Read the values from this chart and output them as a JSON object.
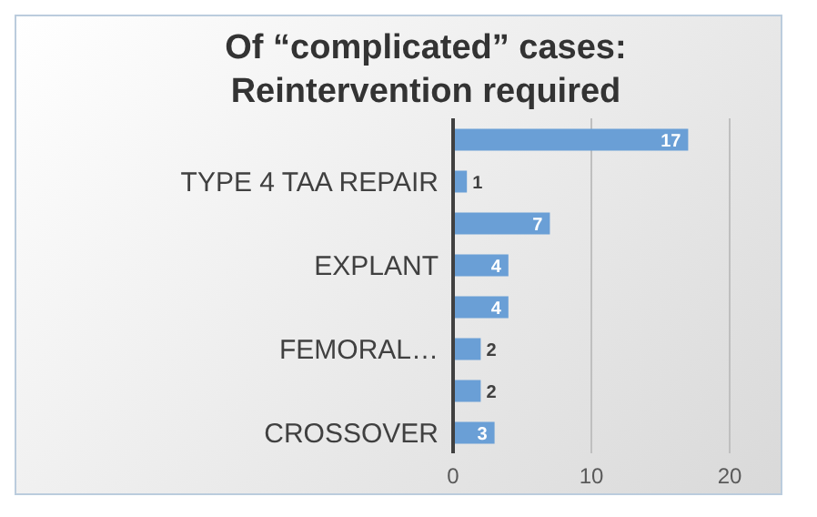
{
  "chart_data": {
    "type": "bar",
    "orientation": "horizontal",
    "title": "Of “complicated” cases: Reintervention required",
    "categories": [
      null,
      "TYPE 4 TAA REPAIR",
      null,
      "EXPLANT",
      null,
      "FEMORAL…",
      null,
      "CROSSOVER"
    ],
    "values": [
      17,
      1,
      7,
      4,
      4,
      2,
      2,
      3
    ],
    "color": "#6a9fd6",
    "xlim": [
      0,
      20
    ],
    "xticks": [
      0,
      10,
      20
    ],
    "grid": "x",
    "data_labels": true
  }
}
